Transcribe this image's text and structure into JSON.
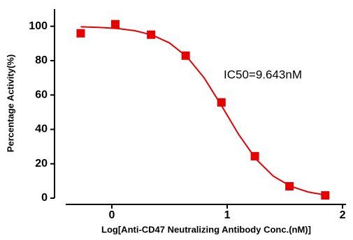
{
  "chart_data": {
    "type": "scatter",
    "xlabel": "Log[Anti-CD47 Neutralizing Antibody  Conc.(nM)]",
    "ylabel": "Percentage Activity(%)",
    "annotation": "IC50=9.643nM",
    "xlim": [
      -0.4,
      2.03
    ],
    "xticks": [
      0,
      1,
      2
    ],
    "ylim": [
      0,
      110
    ],
    "yticks": [
      0,
      20,
      40,
      60,
      80,
      100
    ],
    "series": [
      {
        "x": [
          -0.27,
          0.03,
          0.34,
          0.64,
          0.95,
          1.24,
          1.54,
          1.85
        ],
        "values": [
          95.9,
          101.2,
          95.1,
          82.9,
          55.7,
          24.4,
          6.9,
          1.6
        ],
        "color": "#e60000",
        "marker": "square"
      },
      {
        "x": [
          -0.27,
          -0.1,
          0.05,
          0.2,
          0.35,
          0.5,
          0.65,
          0.8,
          0.95,
          1.1,
          1.25,
          1.4,
          1.55,
          1.7,
          1.85
        ],
        "values": [
          99.7,
          99.3,
          98.7,
          97.4,
          94.9,
          90.3,
          82.3,
          70.0,
          53.9,
          37.0,
          22.7,
          12.8,
          6.9,
          3.6,
          1.8
        ],
        "color": "#e60000",
        "marker": "line"
      }
    ]
  }
}
